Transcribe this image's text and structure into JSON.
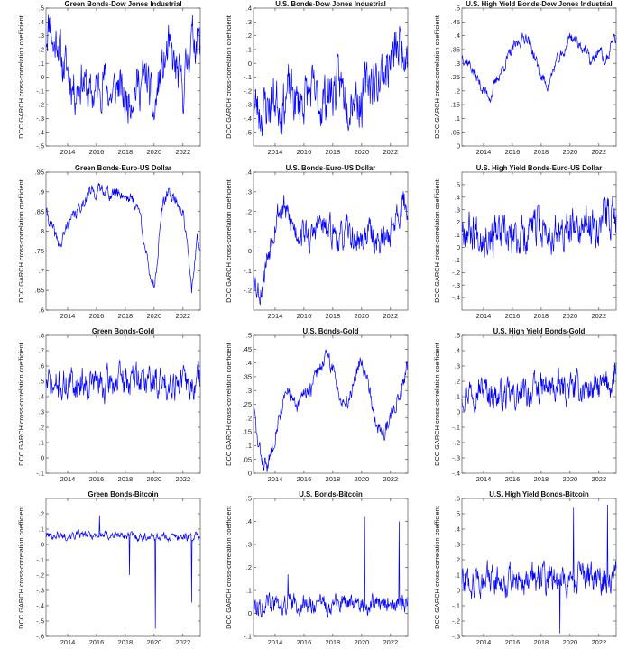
{
  "figure": {
    "ylabel": "DCC GARCH cross-correlation coefficient",
    "xticks": [
      "2014",
      "2016",
      "2018",
      "2020",
      "2022"
    ]
  },
  "chart_data": [
    {
      "type": "line",
      "title": "Green Bonds-Dow Jones Industrial",
      "ylabel": "DCC GARCH cross-correlation coefficient",
      "ylim": [
        -0.5,
        0.5
      ],
      "yticks": [
        -0.5,
        -0.4,
        -0.3,
        -0.2,
        -0.1,
        0,
        0.1,
        0.2,
        0.3,
        0.4,
        0.5
      ],
      "xlim": [
        2012.5,
        2023.2
      ],
      "series": [
        {
          "color": "#0000ff",
          "x": [
            2012.5,
            2012.8,
            2013,
            2013.3,
            2013.6,
            2014,
            2014.5,
            2015,
            2015.5,
            2016,
            2016.5,
            2017,
            2017.5,
            2018,
            2018.5,
            2019,
            2019.5,
            2020,
            2020.3,
            2020.6,
            2021,
            2021.5,
            2022,
            2022.5,
            2023,
            2023.2
          ],
          "y": [
            0.3,
            0.45,
            0.2,
            0.3,
            0.1,
            0.05,
            -0.1,
            0,
            -0.15,
            -0.1,
            0,
            -0.15,
            -0.05,
            -0.2,
            -0.1,
            -0.05,
            0,
            -0.3,
            -0.05,
            0.05,
            0.2,
            0.05,
            -0.1,
            0.25,
            0.3,
            0.2
          ],
          "noise": 0.13,
          "seed": 11
        }
      ]
    },
    {
      "type": "line",
      "title": "U.S. Bonds-Dow Jones Industrial",
      "ylabel": "DCC GARCH cross-correlation coefficient",
      "ylim": [
        -0.6,
        0.4
      ],
      "yticks": [
        -0.5,
        -0.4,
        -0.3,
        -0.2,
        -0.1,
        0,
        0.1,
        0.2,
        0.3,
        0.4
      ],
      "xlim": [
        2012.5,
        2023.2
      ],
      "series": [
        {
          "color": "#0000ff",
          "x": [
            2012.5,
            2013,
            2013.5,
            2014,
            2014.5,
            2015,
            2015.5,
            2016,
            2016.5,
            2017,
            2017.5,
            2018,
            2018.5,
            2019,
            2019.5,
            2020,
            2020.5,
            2021,
            2021.5,
            2022,
            2022.5,
            2023,
            2023.2
          ],
          "y": [
            -0.3,
            -0.35,
            -0.3,
            -0.25,
            -0.3,
            -0.2,
            -0.3,
            -0.25,
            -0.2,
            -0.3,
            -0.25,
            -0.2,
            -0.15,
            -0.25,
            -0.2,
            -0.3,
            -0.1,
            -0.15,
            -0.05,
            0,
            0.1,
            0.15,
            0.1
          ],
          "noise": 0.15,
          "seed": 23
        }
      ]
    },
    {
      "type": "line",
      "title": "U.S. High Yield Bonds-Dow Jones Industrial",
      "ylabel": "DCC GARCH cross-correlation coefficient",
      "ylim": [
        0,
        0.5
      ],
      "yticks": [
        0,
        0.05,
        0.1,
        0.15,
        0.2,
        0.25,
        0.3,
        0.35,
        0.4,
        0.45,
        0.5
      ],
      "xlim": [
        2012.5,
        2023.2
      ],
      "series": [
        {
          "color": "#0000ff",
          "x": [
            2012.5,
            2013,
            2013.5,
            2014,
            2014.5,
            2015,
            2015.5,
            2016,
            2016.5,
            2017,
            2017.5,
            2018,
            2018.5,
            2019,
            2019.5,
            2020,
            2020.5,
            2021,
            2021.5,
            2022,
            2022.5,
            2023,
            2023.2
          ],
          "y": [
            0.33,
            0.3,
            0.25,
            0.2,
            0.18,
            0.25,
            0.3,
            0.35,
            0.38,
            0.4,
            0.33,
            0.25,
            0.22,
            0.3,
            0.33,
            0.4,
            0.38,
            0.35,
            0.3,
            0.35,
            0.3,
            0.4,
            0.38
          ],
          "noise": 0.018,
          "seed": 37
        }
      ]
    },
    {
      "type": "line",
      "title": "Green Bonds-Euro-US Dollar",
      "ylabel": "DCC GARCH cross-correlation coefficient",
      "ylim": [
        0.6,
        0.95
      ],
      "yticks": [
        0.6,
        0.65,
        0.7,
        0.75,
        0.8,
        0.85,
        0.9,
        0.95
      ],
      "xlim": [
        2012.5,
        2023.2
      ],
      "series": [
        {
          "color": "#0000ff",
          "x": [
            2012.5,
            2013,
            2013.5,
            2014,
            2014.5,
            2015,
            2015.5,
            2016,
            2016.5,
            2017,
            2017.5,
            2018,
            2018.5,
            2019,
            2019.3,
            2019.6,
            2020,
            2020.2,
            2020.5,
            2021,
            2021.5,
            2022,
            2022.3,
            2022.6,
            2023,
            2023.2
          ],
          "y": [
            0.85,
            0.8,
            0.76,
            0.82,
            0.84,
            0.87,
            0.9,
            0.9,
            0.91,
            0.89,
            0.9,
            0.89,
            0.88,
            0.85,
            0.78,
            0.7,
            0.66,
            0.72,
            0.85,
            0.9,
            0.88,
            0.85,
            0.76,
            0.65,
            0.78,
            0.75
          ],
          "noise": 0.013,
          "seed": 41
        }
      ]
    },
    {
      "type": "line",
      "title": "U.S. Bonds-Euro-US Dollar",
      "ylabel": "DCC GARCH cross-correlation coefficient",
      "ylim": [
        -0.3,
        0.4
      ],
      "yticks": [
        -0.2,
        -0.1,
        0,
        0.1,
        0.2,
        0.3,
        0.4
      ],
      "xlim": [
        2012.5,
        2023.2
      ],
      "series": [
        {
          "color": "#0000ff",
          "x": [
            2012.5,
            2012.8,
            2013,
            2013.4,
            2013.8,
            2014.2,
            2014.6,
            2015,
            2015.5,
            2016,
            2016.5,
            2017,
            2017.5,
            2018,
            2018.5,
            2019,
            2019.5,
            2020,
            2020.5,
            2021,
            2021.5,
            2022,
            2022.5,
            2023,
            2023.2
          ],
          "y": [
            -0.1,
            -0.2,
            -0.2,
            -0.05,
            0.1,
            0.2,
            0.22,
            0.15,
            0.1,
            0.1,
            0.05,
            0.15,
            0.1,
            0.1,
            0.05,
            0.1,
            0.05,
            0.05,
            0.1,
            0.05,
            0.05,
            0.1,
            0.2,
            0.25,
            0.2
          ],
          "noise": 0.06,
          "seed": 53
        }
      ]
    },
    {
      "type": "line",
      "title": "U.S. High Yield Bonds-Euro-US Dollar",
      "ylabel": "DCC GARCH cross-correlation coefficient",
      "ylim": [
        -0.5,
        0.6
      ],
      "yticks": [
        -0.4,
        -0.3,
        -0.2,
        -0.1,
        0,
        0.1,
        0.2,
        0.3,
        0.4,
        0.5
      ],
      "xlim": [
        2012.5,
        2023.2
      ],
      "series": [
        {
          "color": "#0000ff",
          "x": [
            2012.5,
            2013,
            2014,
            2015,
            2016,
            2017,
            2018,
            2019,
            2020,
            2021,
            2022,
            2023,
            2023.2
          ],
          "y": [
            0.2,
            0.15,
            0.12,
            0.1,
            0.05,
            0.12,
            0.15,
            0.1,
            0.12,
            0.15,
            0.2,
            0.28,
            0.25
          ],
          "noise": 0.13,
          "seed": 67
        }
      ]
    },
    {
      "type": "line",
      "title": "Green Bonds-Gold",
      "ylabel": "DCC GARCH cross-correlation coefficient",
      "ylim": [
        -0.1,
        0.8
      ],
      "yticks": [
        -0.1,
        0,
        0.1,
        0.2,
        0.3,
        0.4,
        0.5,
        0.6,
        0.7,
        0.8
      ],
      "xlim": [
        2012.5,
        2023.2
      ],
      "series": [
        {
          "color": "#0000ff",
          "x": [
            2012.5,
            2013,
            2014,
            2015,
            2016,
            2016.5,
            2017,
            2018,
            2019,
            2020,
            2020.5,
            2021,
            2022,
            2022.5,
            2023,
            2023.2
          ],
          "y": [
            0.5,
            0.45,
            0.48,
            0.5,
            0.5,
            0.45,
            0.5,
            0.5,
            0.52,
            0.5,
            0.48,
            0.5,
            0.5,
            0.45,
            0.5,
            0.52
          ],
          "noise": 0.085,
          "seed": 71
        }
      ]
    },
    {
      "type": "line",
      "title": "U.S. Bonds-Gold",
      "ylabel": "DCC GARCH cross-correlation coefficient",
      "ylim": [
        0,
        0.5
      ],
      "yticks": [
        0,
        0.05,
        0.1,
        0.15,
        0.2,
        0.25,
        0.3,
        0.35,
        0.4,
        0.45,
        0.5
      ],
      "xlim": [
        2012.5,
        2023.2
      ],
      "series": [
        {
          "color": "#0000ff",
          "x": [
            2012.5,
            2012.8,
            2013.1,
            2013.5,
            2014,
            2014.5,
            2015,
            2015.5,
            2016,
            2016.5,
            2017,
            2017.5,
            2018,
            2018.5,
            2019,
            2019.5,
            2020,
            2020.5,
            2021,
            2021.5,
            2022,
            2022.5,
            2023,
            2023.2
          ],
          "y": [
            0.25,
            0.1,
            0.05,
            0.02,
            0.15,
            0.25,
            0.3,
            0.22,
            0.3,
            0.3,
            0.38,
            0.42,
            0.38,
            0.28,
            0.25,
            0.35,
            0.42,
            0.32,
            0.18,
            0.14,
            0.2,
            0.28,
            0.35,
            0.4
          ],
          "noise": 0.025,
          "seed": 83
        }
      ]
    },
    {
      "type": "line",
      "title": "U.S. High Yield Bonds-Gold",
      "ylabel": "DCC GARCH cross-correlation coefficient",
      "ylim": [
        -0.4,
        0.5
      ],
      "yticks": [
        -0.4,
        -0.3,
        -0.2,
        -0.1,
        0,
        0.1,
        0.2,
        0.3,
        0.4,
        0.5
      ],
      "xlim": [
        2012.5,
        2023.2
      ],
      "series": [
        {
          "color": "#0000ff",
          "x": [
            2012.5,
            2013,
            2014,
            2015,
            2016,
            2017,
            2018,
            2019,
            2020,
            2021,
            2022,
            2023,
            2023.2
          ],
          "y": [
            0.12,
            0.15,
            0.15,
            0.1,
            0.1,
            0.12,
            0.15,
            0.15,
            0.15,
            0.15,
            0.15,
            0.2,
            0.3
          ],
          "noise": 0.08,
          "seed": 97
        }
      ]
    },
    {
      "type": "line",
      "title": "Green Bonds-Bitcoin",
      "ylabel": "DCC GARCH cross-correlation coefficient",
      "ylim": [
        -0.6,
        0.3
      ],
      "yticks": [
        -0.6,
        -0.5,
        -0.4,
        -0.3,
        -0.2,
        -0.1,
        0,
        0.1,
        0.2
      ],
      "xlim": [
        2012.5,
        2023.2
      ],
      "series": [
        {
          "color": "#0000ff",
          "x": [
            2012.5,
            2013,
            2014,
            2015,
            2016,
            2017,
            2018,
            2019,
            2020,
            2021,
            2022,
            2023,
            2023.2
          ],
          "y": [
            0.06,
            0.06,
            0.06,
            0.06,
            0.06,
            0.06,
            0.06,
            0.05,
            0.05,
            0.05,
            0.05,
            0.05,
            0.05
          ],
          "noise": 0.022,
          "seed": 101,
          "spikes": [
            [
              2020.1,
              -0.55
            ],
            [
              2022.6,
              -0.38
            ],
            [
              2018.3,
              -0.2
            ],
            [
              2016.2,
              0.19
            ]
          ]
        }
      ]
    },
    {
      "type": "line",
      "title": "U.S. Bonds-Bitcoin",
      "ylabel": "DCC GARCH cross-correlation coefficient",
      "ylim": [
        -0.1,
        0.5
      ],
      "yticks": [
        -0.1,
        0,
        0.1,
        0.2,
        0.3,
        0.4,
        0.5
      ],
      "xlim": [
        2012.5,
        2023.2
      ],
      "series": [
        {
          "color": "#0000ff",
          "x": [
            2012.5,
            2013,
            2014,
            2015,
            2016,
            2017,
            2018,
            2019,
            2020,
            2021,
            2022,
            2023,
            2023.2
          ],
          "y": [
            0.04,
            0.04,
            0.04,
            0.04,
            0.04,
            0.04,
            0.04,
            0.04,
            0.04,
            0.04,
            0.04,
            0.04,
            0.04
          ],
          "noise": 0.035,
          "seed": 113,
          "spikes": [
            [
              2020.2,
              0.42
            ],
            [
              2022.6,
              0.4
            ],
            [
              2014.9,
              0.17
            ]
          ]
        }
      ]
    },
    {
      "type": "line",
      "title": "U.S. High Yield Bonds-Bitcoin",
      "ylabel": "DCC GARCH cross-correlation coefficient",
      "ylim": [
        -0.3,
        0.6
      ],
      "yticks": [
        -0.3,
        -0.2,
        -0.1,
        0,
        0.1,
        0.2,
        0.3,
        0.4,
        0.5,
        0.6
      ],
      "xlim": [
        2012.5,
        2023.2
      ],
      "series": [
        {
          "color": "#0000ff",
          "x": [
            2012.5,
            2013,
            2014,
            2015,
            2016,
            2017,
            2018,
            2019,
            2020,
            2021,
            2022,
            2023,
            2023.2
          ],
          "y": [
            0.08,
            0.07,
            0.07,
            0.07,
            0.07,
            0.07,
            0.07,
            0.07,
            0.07,
            0.07,
            0.07,
            0.08,
            0.08
          ],
          "noise": 0.085,
          "seed": 127,
          "spikes": [
            [
              2020.25,
              0.54
            ],
            [
              2022.6,
              0.56
            ],
            [
              2019.3,
              -0.28
            ]
          ]
        }
      ]
    }
  ]
}
